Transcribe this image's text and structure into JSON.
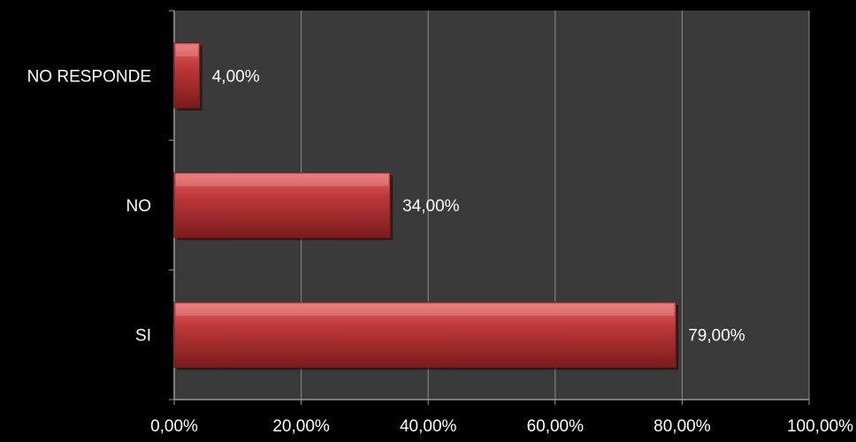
{
  "chart_data": {
    "type": "bar",
    "orientation": "horizontal",
    "categories": [
      "NO RESPONDE",
      "NO",
      "SI"
    ],
    "values": [
      4,
      34,
      79
    ],
    "data_labels": [
      "4,00%",
      "34,00%",
      "79,00%"
    ],
    "x_ticks": [
      "0,00%",
      "20,00%",
      "40,00%",
      "60,00%",
      "80,00%",
      "100,00%"
    ],
    "xlim": [
      0,
      100
    ],
    "grid": true,
    "legend": "none",
    "title": "",
    "xlabel": "",
    "ylabel": "",
    "colors": {
      "page_background": "#000000",
      "plot_background": "#3a3a3a",
      "gridline": "#8a8a8a",
      "axis_line": "#9a9a9a",
      "bar_fill": "#c0393b",
      "bar_highlight": "#e86566",
      "bar_shadow": "#7a1b1c",
      "text": "#ffffff"
    }
  }
}
